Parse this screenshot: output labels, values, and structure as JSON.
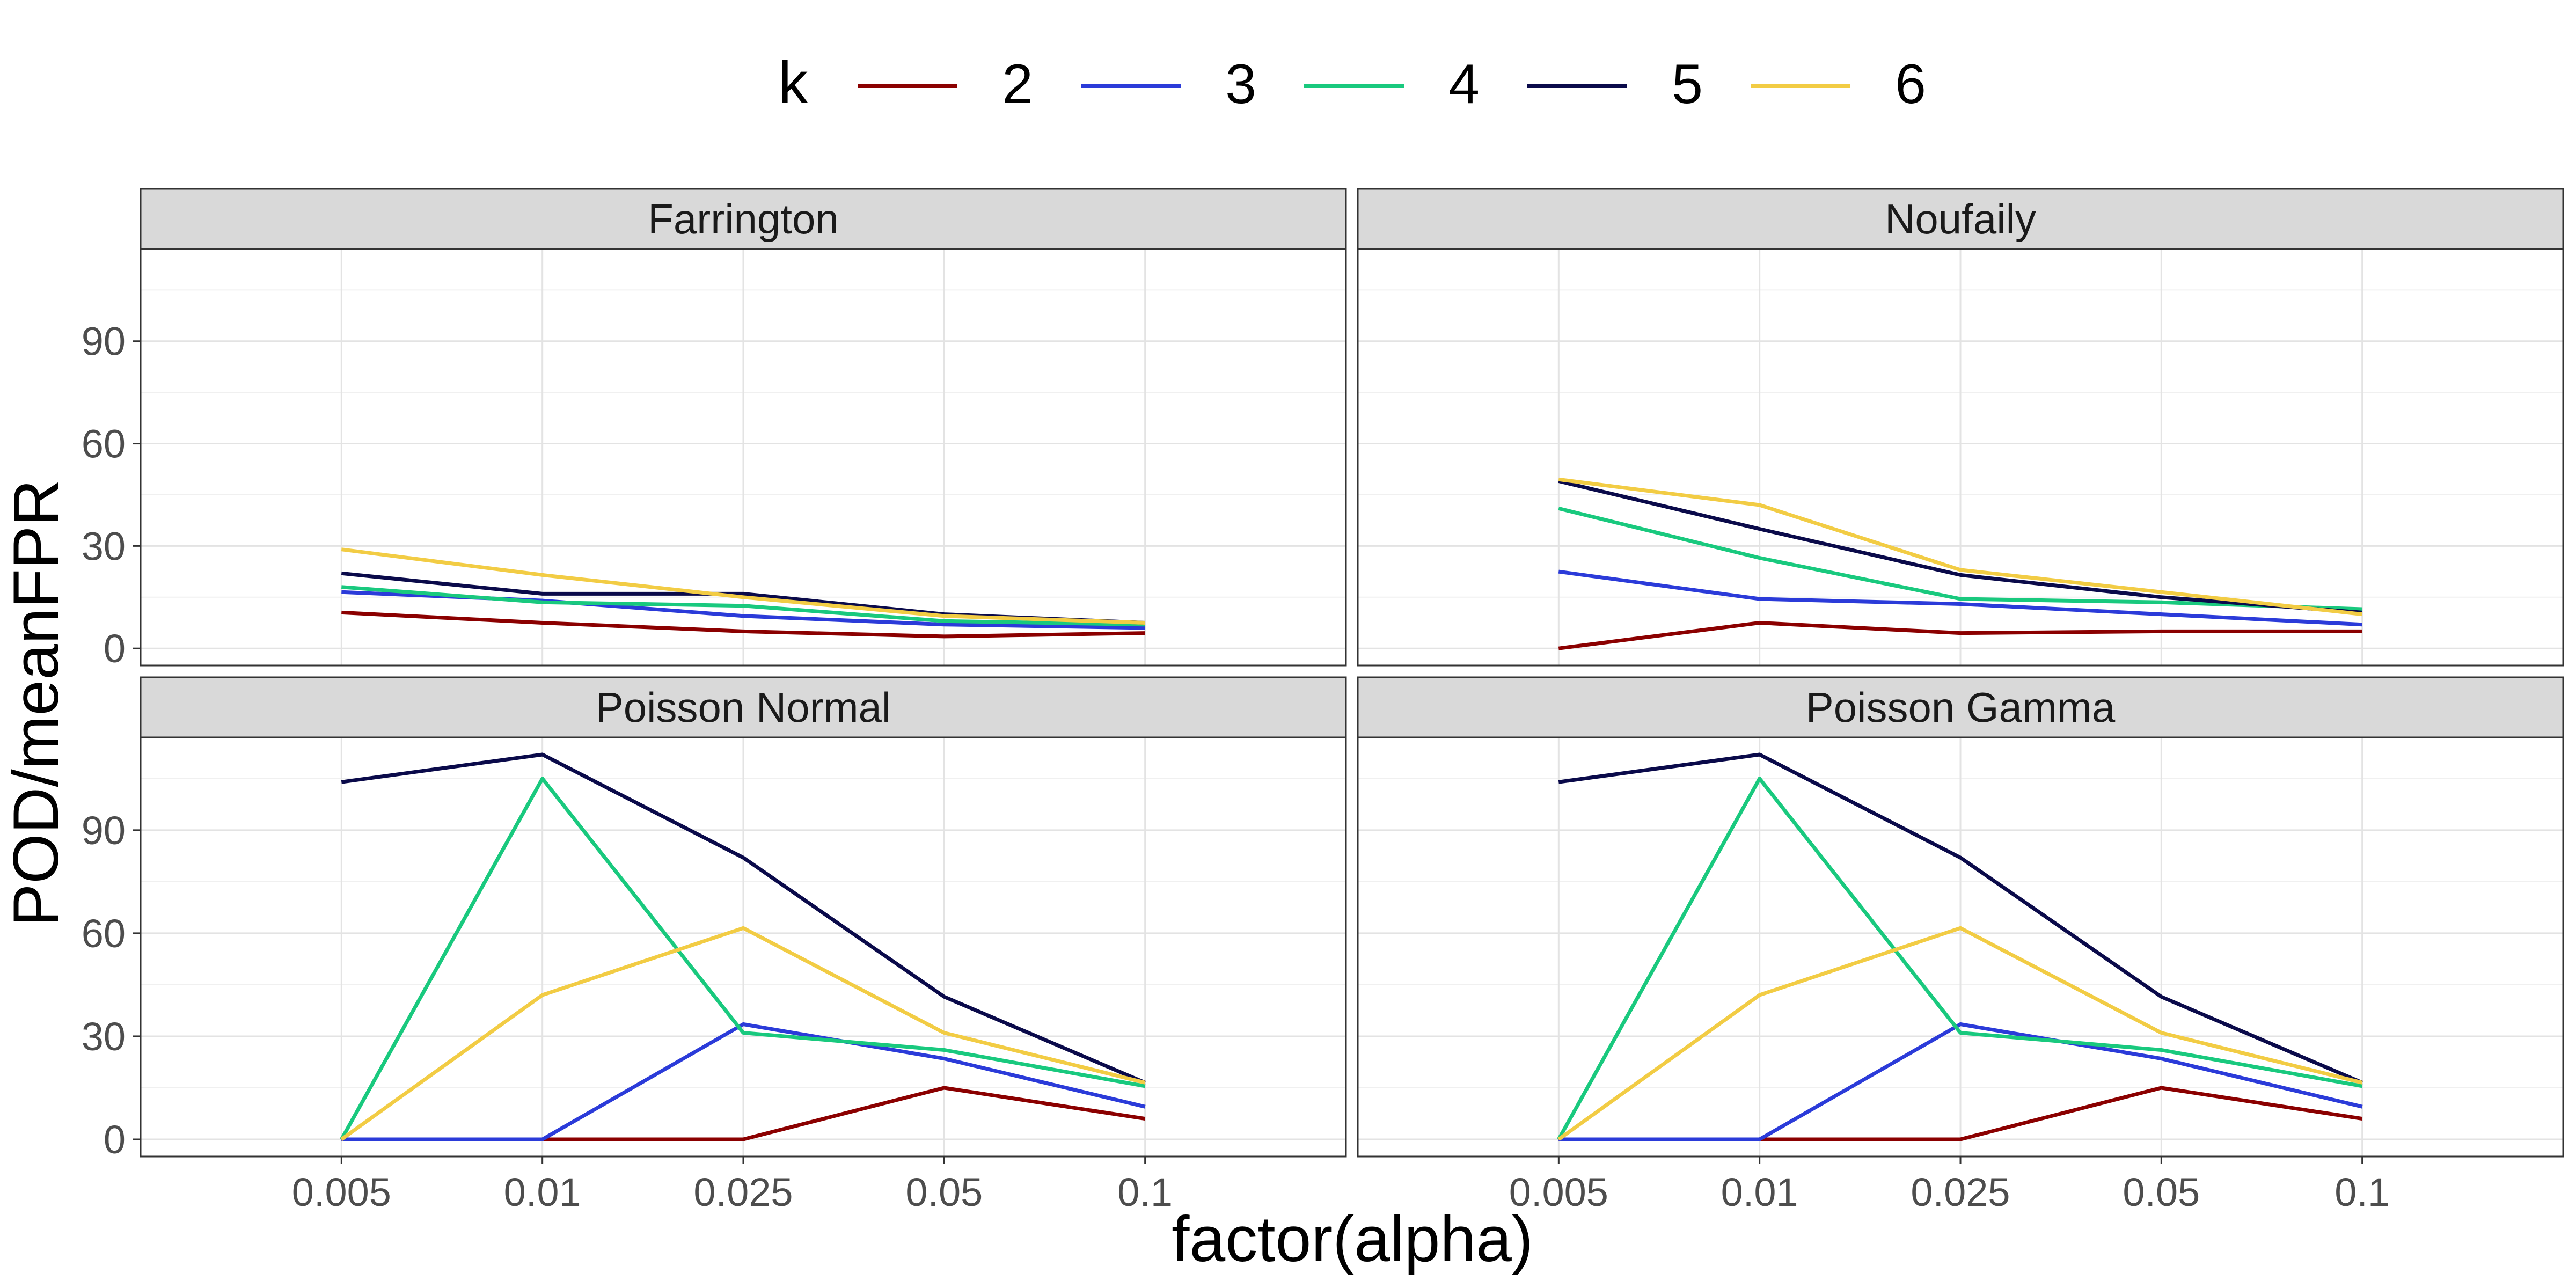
{
  "chart_data": {
    "type": "line",
    "facet_layout": "2x2 grid",
    "legend": {
      "title": "k",
      "position": "top",
      "entries": [
        {
          "label": "2",
          "color": "#8B0000"
        },
        {
          "label": "3",
          "color": "#2B3BD9"
        },
        {
          "label": "4",
          "color": "#19C97E"
        },
        {
          "label": "5",
          "color": "#0A0A4A"
        },
        {
          "label": "6",
          "color": "#F2CC44"
        }
      ]
    },
    "xlabel": "factor(alpha)",
    "ylabel": "POD/meanFPR",
    "x_categories": [
      "0.005",
      "0.01",
      "0.025",
      "0.05",
      "0.1"
    ],
    "y_ticks": [
      "0",
      "30",
      "60",
      "90"
    ],
    "ylim": [
      -5,
      117
    ],
    "grid": true,
    "panels": [
      {
        "title": "Farrington",
        "series": [
          {
            "name": "2",
            "values": [
              10.5,
              7.5,
              5,
              3.5,
              4.5
            ]
          },
          {
            "name": "3",
            "values": [
              16.5,
              14,
              9.5,
              7,
              6
            ]
          },
          {
            "name": "4",
            "values": [
              18,
              13.5,
              12.5,
              8,
              7
            ]
          },
          {
            "name": "5",
            "values": [
              22,
              16,
              16,
              10,
              7.5
            ]
          },
          {
            "name": "6",
            "values": [
              29,
              21.5,
              15,
              9.5,
              7.5
            ]
          }
        ]
      },
      {
        "title": "Noufaily",
        "series": [
          {
            "name": "2",
            "values": [
              0,
              7.5,
              4.5,
              5,
              5
            ]
          },
          {
            "name": "3",
            "values": [
              22.5,
              14.5,
              13,
              10,
              7
            ]
          },
          {
            "name": "4",
            "values": [
              41,
              26.5,
              14.5,
              13.5,
              11.5
            ]
          },
          {
            "name": "5",
            "values": [
              49,
              35,
              21.5,
              15,
              10.5
            ]
          },
          {
            "name": "6",
            "values": [
              49.5,
              42,
              23,
              16.5,
              10
            ]
          }
        ]
      },
      {
        "title": "Poisson Normal",
        "series": [
          {
            "name": "2",
            "values": [
              0,
              0,
              0,
              15,
              6
            ]
          },
          {
            "name": "3",
            "values": [
              0,
              0,
              33.5,
              23.5,
              9.5
            ]
          },
          {
            "name": "4",
            "values": [
              0,
              105,
              31,
              26,
              15.5
            ]
          },
          {
            "name": "5",
            "values": [
              104,
              112,
              82,
              41.5,
              16.5
            ]
          },
          {
            "name": "6",
            "values": [
              0,
              42,
              61.5,
              31,
              16.5
            ]
          }
        ]
      },
      {
        "title": "Poisson Gamma",
        "series": [
          {
            "name": "2",
            "values": [
              0,
              0,
              0,
              15,
              6
            ]
          },
          {
            "name": "3",
            "values": [
              0,
              0,
              33.5,
              23.5,
              9.5
            ]
          },
          {
            "name": "4",
            "values": [
              0,
              105,
              31,
              26,
              15.5
            ]
          },
          {
            "name": "5",
            "values": [
              104,
              112,
              82,
              41.5,
              16.5
            ]
          },
          {
            "name": "6",
            "values": [
              0,
              42,
              61.5,
              31,
              16.5
            ]
          }
        ]
      }
    ]
  }
}
